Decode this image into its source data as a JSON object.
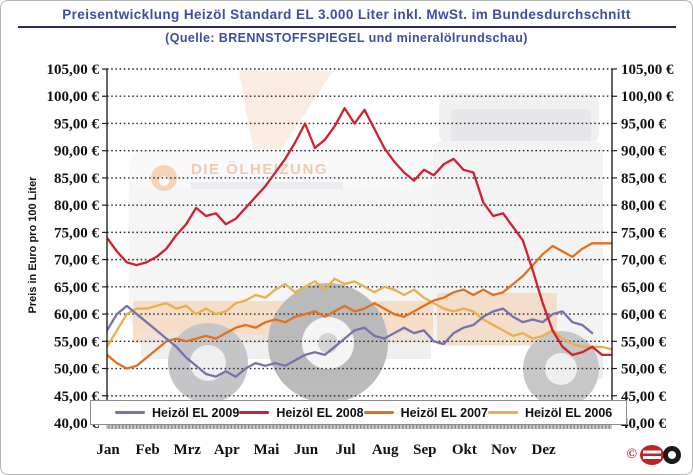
{
  "header": {
    "title": "Preisentwicklung Heizöl Standard EL 3.000 Liter inkl. MwSt. im Bundesdurchschnitt",
    "subtitle": "(Quelle: BRENNSTOFFSPIEGEL und mineralölrundschau)"
  },
  "y_axis": {
    "label": "Preis in Euro pro 100 Liter",
    "min": 40,
    "max": 105,
    "step": 5,
    "tick_labels": [
      "105,00 €",
      "100,00 €",
      "95,00 €",
      "90,00 €",
      "85,00 €",
      "80,00 €",
      "75,00 €",
      "70,00 €",
      "65,00 €",
      "60,00 €",
      "55,00 €",
      "50,00 €",
      "45,00 €",
      "40,00 €"
    ]
  },
  "x_axis": {
    "months": [
      "Jan",
      "Feb",
      "Mrz",
      "Apr",
      "Mai",
      "Jun",
      "Jul",
      "Aug",
      "Sep",
      "Okt",
      "Nov",
      "Dez"
    ]
  },
  "watermark": {
    "text": "DIE ÖLHEIZUNG"
  },
  "footer": {
    "copyright_symbol": "©",
    "logo": "esyoil-logo"
  },
  "colors": {
    "title_blue": "#3c4da8",
    "grid": "#2b2b2b",
    "axis": "#222222",
    "series_2009": "#7373ad",
    "series_2008": "#cf2130",
    "series_2007": "#e2711c",
    "series_2006": "#eaaf4e"
  },
  "chart_data": {
    "type": "line",
    "title": "Preisentwicklung Heizöl Standard EL 3.000 Liter inkl. MwSt. im Bundesdurchschnitt",
    "source": "(Quelle: BRENNSTOFFSPIEGEL und mineralölrundschau)",
    "ylabel": "Preis in Euro pro 100 Liter",
    "y_unit": "EUR per 100 Liter",
    "ylim": [
      40,
      105
    ],
    "y_step": 5,
    "grid": "horizontal-dotted",
    "legend_position": "bottom",
    "x_categories": [
      "Jan",
      "Feb",
      "Mrz",
      "Apr",
      "Mai",
      "Jun",
      "Jul",
      "Aug",
      "Sep",
      "Okt",
      "Nov",
      "Dez"
    ],
    "x_resolution": "weekly (values approximate, read from daily curve)",
    "series": [
      {
        "name": "Heizöl EL 2009",
        "color": "#7373ad",
        "values": [
          57.0,
          60.0,
          61.5,
          60.0,
          58.5,
          57.0,
          55.5,
          54.0,
          52.0,
          50.5,
          49.0,
          48.5,
          49.5,
          48.5,
          50.0,
          51.0,
          50.5,
          51.0,
          50.5,
          51.5,
          52.5,
          53.0,
          52.5,
          54.0,
          55.5,
          57.0,
          57.5,
          56.0,
          55.5,
          56.5,
          57.5,
          56.5,
          57.0,
          55.0,
          54.5,
          56.5,
          57.5,
          58.0,
          59.5,
          60.5,
          61.0,
          59.5,
          58.5,
          59.0,
          58.5,
          60.0,
          60.5,
          58.5,
          58.0,
          56.5
        ]
      },
      {
        "name": "Heizöl EL 2008",
        "color": "#cf2130",
        "values": [
          74.0,
          71.5,
          69.5,
          69.0,
          69.5,
          70.5,
          72.0,
          74.5,
          76.5,
          79.5,
          78.0,
          78.5,
          76.5,
          77.5,
          79.5,
          81.5,
          83.5,
          86.0,
          88.5,
          91.5,
          95.0,
          90.5,
          92.0,
          94.5,
          97.8,
          95.0,
          97.5,
          94.0,
          90.5,
          88.0,
          86.0,
          84.5,
          86.5,
          85.5,
          87.5,
          88.5,
          86.5,
          86.0,
          80.5,
          78.0,
          78.5,
          76.0,
          73.5,
          68.0,
          62.0,
          57.0,
          54.0,
          52.5,
          53.0,
          54.0,
          52.5,
          52.5
        ]
      },
      {
        "name": "Heizöl EL 2007",
        "color": "#e2711c",
        "values": [
          52.5,
          51.0,
          50.0,
          50.5,
          52.0,
          53.5,
          55.0,
          55.5,
          55.0,
          55.5,
          56.0,
          55.5,
          56.5,
          57.5,
          58.0,
          57.5,
          58.5,
          59.0,
          58.5,
          59.5,
          60.0,
          60.5,
          59.5,
          60.5,
          61.5,
          60.5,
          61.0,
          62.0,
          61.0,
          60.0,
          59.5,
          60.5,
          61.5,
          62.5,
          63.0,
          64.0,
          64.5,
          63.5,
          64.5,
          63.5,
          64.0,
          65.5,
          67.0,
          69.0,
          71.0,
          72.5,
          71.5,
          70.5,
          72.0,
          73.0,
          73.0,
          73.0
        ]
      },
      {
        "name": "Heizöl EL 2006",
        "color": "#eaaf4e",
        "values": [
          54.0,
          57.0,
          60.0,
          61.0,
          61.0,
          61.5,
          62.0,
          61.0,
          61.5,
          60.0,
          61.0,
          60.0,
          60.5,
          62.0,
          62.5,
          63.5,
          63.0,
          64.5,
          65.5,
          64.0,
          65.0,
          66.0,
          64.5,
          66.5,
          65.5,
          66.0,
          65.0,
          64.0,
          65.0,
          64.5,
          63.5,
          64.5,
          63.0,
          62.0,
          61.0,
          60.5,
          61.0,
          60.5,
          59.0,
          58.0,
          57.0,
          56.0,
          56.5,
          55.5,
          56.0,
          57.0,
          55.5,
          54.5,
          54.0,
          54.0,
          54.0,
          53.5
        ]
      }
    ]
  }
}
